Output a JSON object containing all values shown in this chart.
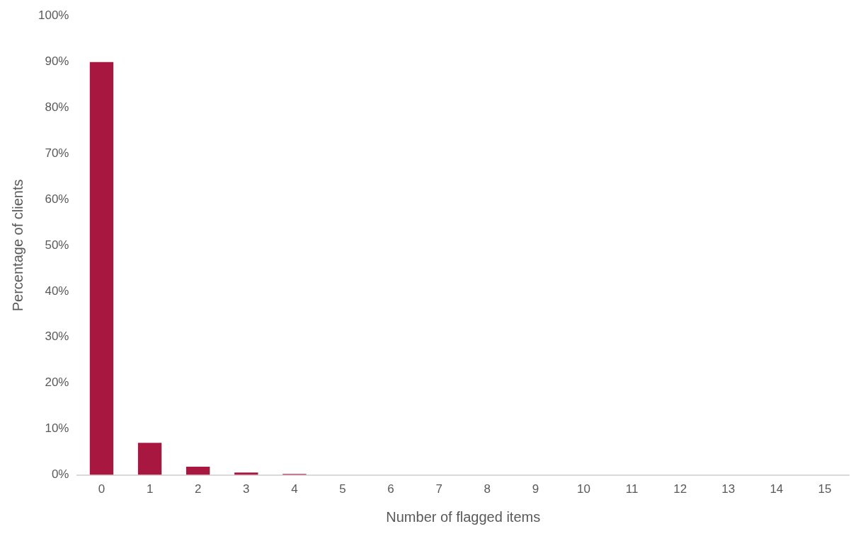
{
  "chart_data": {
    "type": "bar",
    "xlabel": "Number of flagged items",
    "ylabel": "Percentage of clients",
    "categories": [
      "0",
      "1",
      "2",
      "3",
      "4",
      "5",
      "6",
      "7",
      "8",
      "9",
      "10",
      "11",
      "12",
      "13",
      "14",
      "15"
    ],
    "values": [
      89.9,
      7.0,
      1.8,
      0.5,
      0.2,
      0,
      0,
      0,
      0,
      0,
      0,
      0,
      0,
      0,
      0,
      0
    ],
    "color": "#a8173f",
    "ylim": [
      0,
      100
    ],
    "yticks": [
      {
        "value": 0,
        "label": "0%"
      },
      {
        "value": 10,
        "label": "10%"
      },
      {
        "value": 20,
        "label": "20%"
      },
      {
        "value": 30,
        "label": "30%"
      },
      {
        "value": 40,
        "label": "40%"
      },
      {
        "value": 50,
        "label": "50%"
      },
      {
        "value": 60,
        "label": "60%"
      },
      {
        "value": 70,
        "label": "70%"
      },
      {
        "value": 80,
        "label": "80%"
      },
      {
        "value": 90,
        "label": "90%"
      },
      {
        "value": 100,
        "label": "100%"
      }
    ],
    "grid": false,
    "legend": false
  }
}
